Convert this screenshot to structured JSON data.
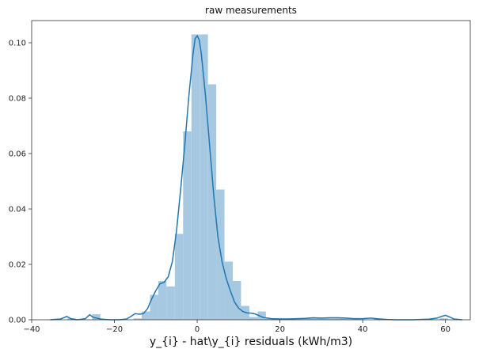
{
  "chart_data": {
    "type": "bar",
    "title": "raw measurements",
    "xlabel": "y_{i} - hat\\y_{i} residuals (kWh/m3)",
    "ylabel": "",
    "xlim": [
      -40,
      66
    ],
    "ylim": [
      0,
      0.108
    ],
    "x_ticks": [
      -40,
      -20,
      0,
      20,
      40,
      60
    ],
    "x_tick_labels": [
      "−40",
      "−20",
      "0",
      "20",
      "40",
      "60"
    ],
    "y_ticks": [
      0.0,
      0.02,
      0.04,
      0.06,
      0.08,
      0.1
    ],
    "y_tick_labels": [
      "0.00",
      "0.02",
      "0.04",
      "0.06",
      "0.08",
      "0.10"
    ],
    "grid": false,
    "legend": "none",
    "colors": {
      "bars": "#a6c8e0",
      "kde": "#1f77b4",
      "axes": "#333333"
    },
    "histogram": {
      "name": "histogram",
      "bin_edges": [
        -35.4,
        -33.4,
        -31.4,
        -29.4,
        -27.4,
        -25.4,
        -23.4,
        -21.4,
        -19.4,
        -17.4,
        -15.4,
        -13.4,
        -11.4,
        -9.4,
        -7.4,
        -5.4,
        -3.4,
        -1.4,
        0.6,
        2.6,
        4.6,
        6.6,
        8.6,
        10.6,
        12.6,
        14.6,
        16.6,
        18.6,
        20.6,
        22.6,
        24.6,
        26.6,
        28.6,
        30.6,
        32.6,
        34.6,
        36.6,
        38.6,
        40.6,
        42.6,
        44.6,
        46.6,
        48.6,
        50.6,
        52.6,
        54.6,
        56.6,
        58.6,
        60.6,
        62.6
      ],
      "values": [
        0,
        0,
        0.0005,
        0,
        0,
        0.002,
        0,
        0,
        0,
        0,
        0.0005,
        0.003,
        0.009,
        0.014,
        0.012,
        0.031,
        0.068,
        0.103,
        0.103,
        0.085,
        0.047,
        0.021,
        0.014,
        0.005,
        0.001,
        0.003,
        0.0005,
        0.0005,
        0.0005,
        0.0005,
        0.0005,
        0.0005,
        0.0005,
        0.0005,
        0.0005,
        0.0005,
        0.0005,
        0,
        0,
        0.0005,
        0,
        0,
        0,
        0,
        0,
        0,
        0,
        0.0005,
        0
      ]
    },
    "kde": {
      "name": "kde",
      "x": [
        -35.5,
        -33,
        -31.5,
        -30.5,
        -29,
        -27,
        -26,
        -25,
        -23,
        -21,
        -19,
        -17,
        -16,
        -15,
        -14,
        -13,
        -12,
        -11,
        -10,
        -9,
        -8,
        -7,
        -6,
        -5,
        -4,
        -3,
        -2,
        -1,
        -0.5,
        0,
        0.5,
        1,
        2,
        3,
        4,
        5,
        6,
        7,
        8,
        9,
        10,
        11,
        12,
        13,
        14,
        16,
        18,
        20,
        22,
        24,
        26,
        28,
        30,
        32,
        34,
        36,
        38,
        40,
        42,
        44,
        46,
        48,
        50,
        52,
        54,
        56,
        58,
        59,
        60,
        61,
        62,
        64
      ],
      "y": [
        0,
        0.0003,
        0.0012,
        0.0004,
        0,
        0.0004,
        0.0018,
        0.0008,
        0.0002,
        0,
        0,
        0.0003,
        0.0012,
        0.0022,
        0.002,
        0.0022,
        0.004,
        0.0075,
        0.0105,
        0.013,
        0.0135,
        0.0155,
        0.021,
        0.032,
        0.047,
        0.063,
        0.081,
        0.096,
        0.1015,
        0.1025,
        0.101,
        0.096,
        0.081,
        0.063,
        0.045,
        0.03,
        0.021,
        0.015,
        0.0105,
        0.0065,
        0.0042,
        0.003,
        0.0025,
        0.0024,
        0.0021,
        0.0008,
        0.0004,
        0.0003,
        0.0003,
        0.0004,
        0.0005,
        0.0007,
        0.0006,
        0.0007,
        0.0007,
        0.0006,
        0.0004,
        0.0004,
        0.0006,
        0.0003,
        0.0001,
        0,
        0,
        0,
        0.0001,
        0.0002,
        0.0006,
        0.0012,
        0.0016,
        0.001,
        0.0003,
        0
      ]
    }
  }
}
